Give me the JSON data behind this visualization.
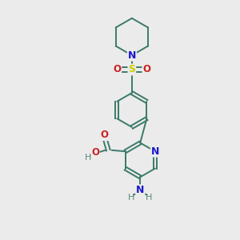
{
  "bg_color": "#ebebeb",
  "bond_color": "#3a7a6a",
  "N_color": "#1a1acc",
  "O_color": "#cc2020",
  "S_color": "#cccc00",
  "H_color": "#5a8a7a",
  "figsize": [
    3.0,
    3.0
  ],
  "dpi": 100,
  "xlim": [
    0,
    10
  ],
  "ylim": [
    0,
    10
  ]
}
